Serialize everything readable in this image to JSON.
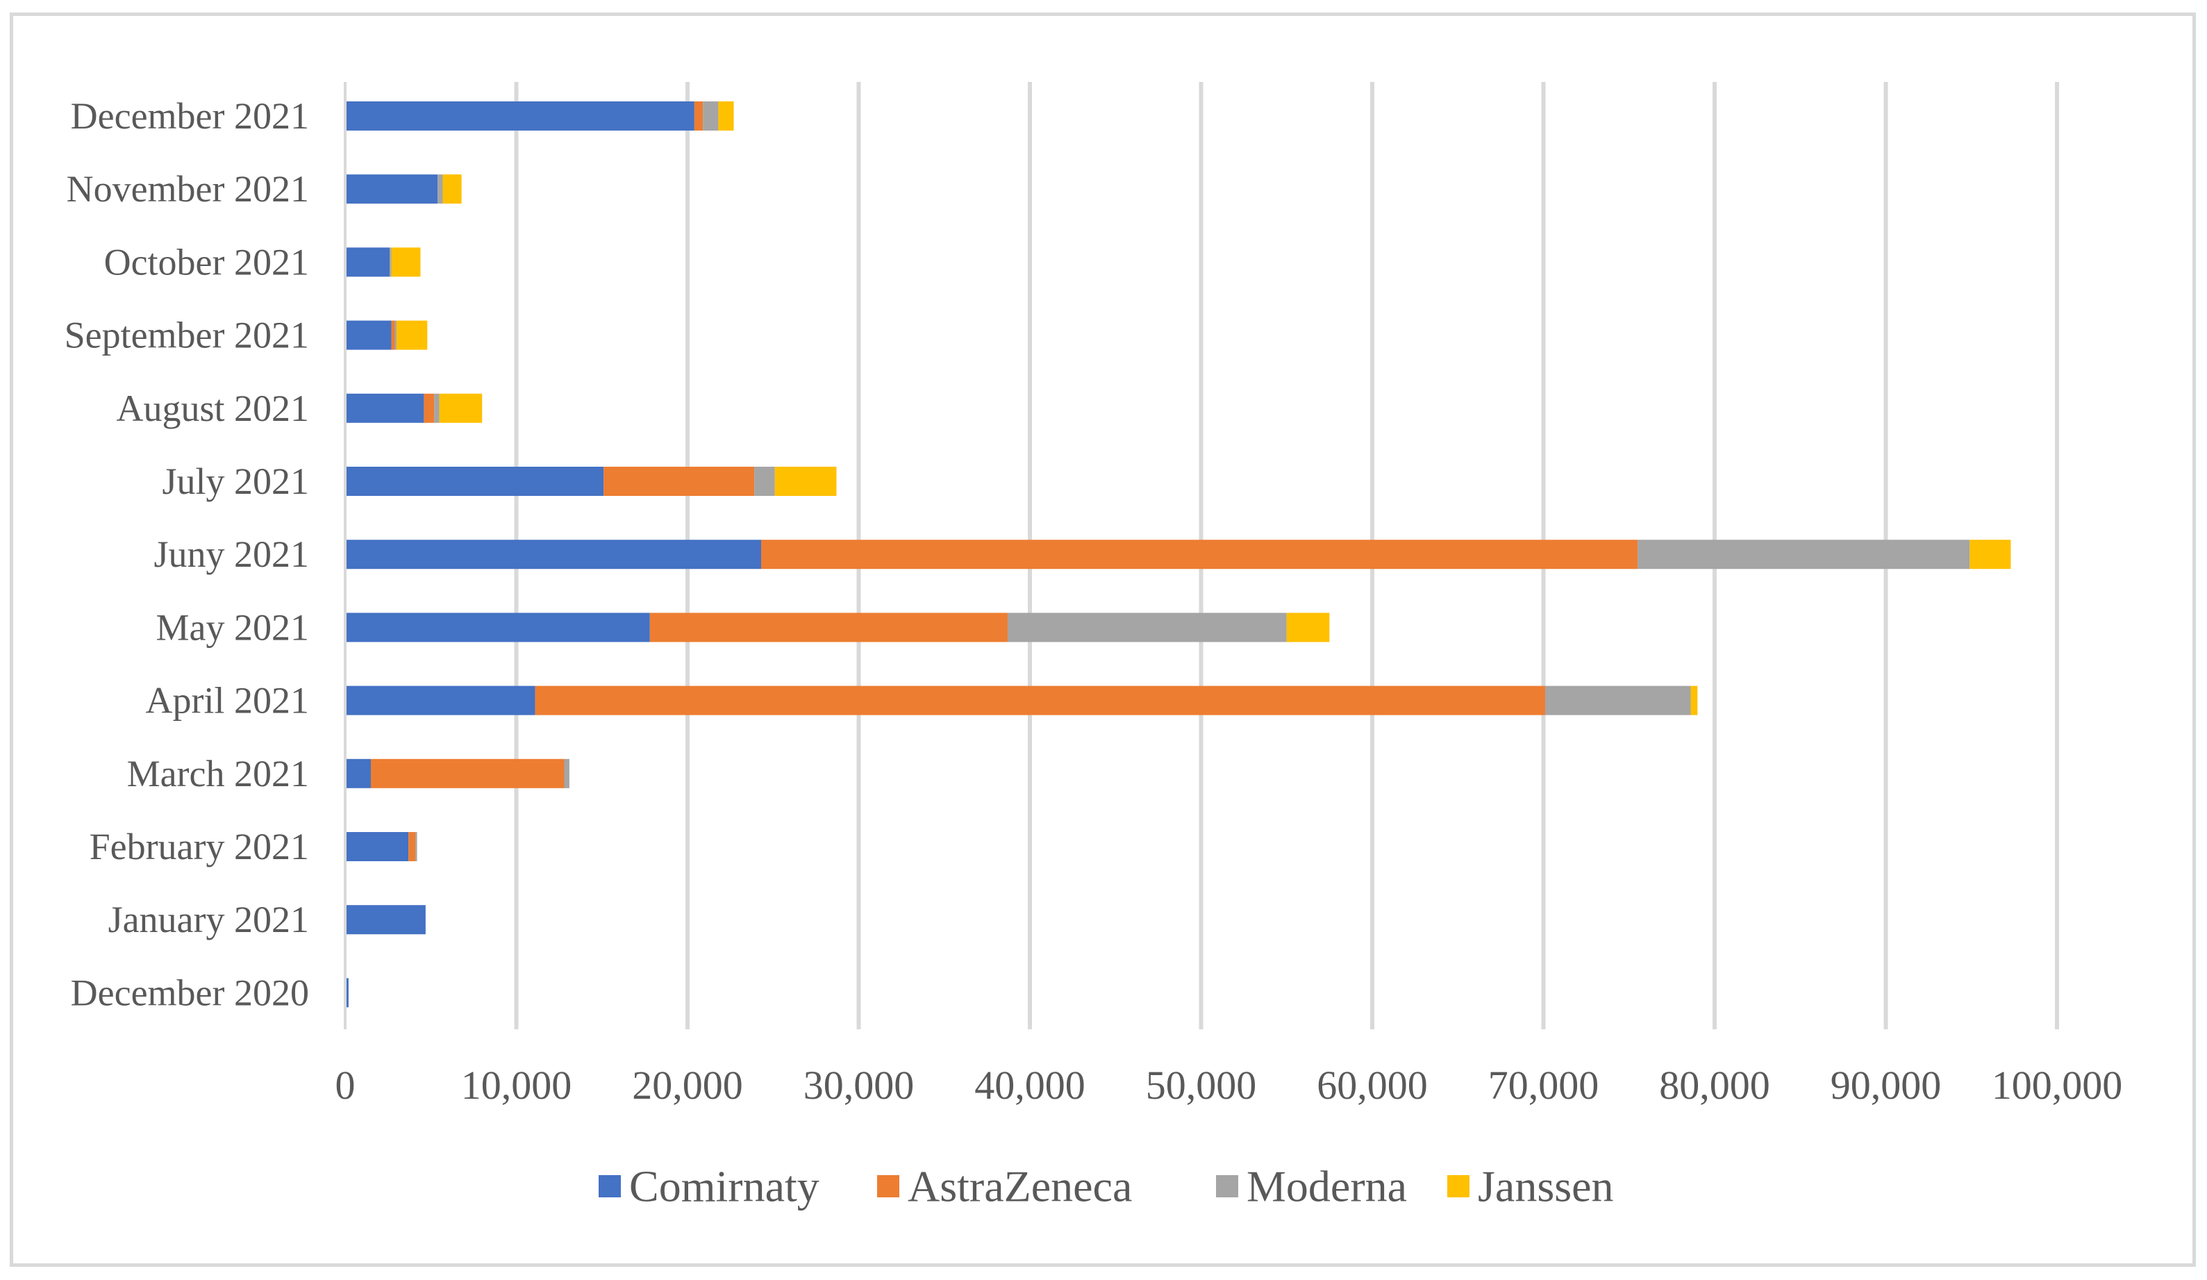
{
  "chart_data": {
    "type": "bar",
    "orientation": "horizontal",
    "stacked": true,
    "title": "",
    "xlabel": "",
    "ylabel": "",
    "xlim": [
      0,
      100000
    ],
    "x_ticks": [
      0,
      10000,
      20000,
      30000,
      40000,
      50000,
      60000,
      70000,
      80000,
      90000,
      100000
    ],
    "x_tick_labels": [
      "0",
      "10,000",
      "20,000",
      "30,000",
      "40,000",
      "50,000",
      "60,000",
      "70,000",
      "80,000",
      "90,000",
      "100,000"
    ],
    "grid": true,
    "legend_position": "bottom",
    "categories": [
      "December 2021",
      "November 2021",
      "October 2021",
      "September 2021",
      "August 2021",
      "July 2021",
      "Juny 2021",
      "May 2021",
      "April 2021",
      "March 2021",
      "February 2021",
      "January 2021",
      "December 2020"
    ],
    "series": [
      {
        "name": "Comirnaty",
        "color": "#4472c4",
        "values": [
          20400,
          5400,
          2600,
          2700,
          4600,
          15100,
          24300,
          17800,
          11100,
          1500,
          3700,
          4700,
          200
        ]
      },
      {
        "name": "AstraZeneca",
        "color": "#ed7d31",
        "values": [
          500,
          0,
          0,
          200,
          600,
          8800,
          51200,
          20900,
          59000,
          11300,
          400,
          0,
          0
        ]
      },
      {
        "name": "Moderna",
        "color": "#a5a5a5",
        "values": [
          900,
          300,
          100,
          100,
          300,
          1200,
          19400,
          16300,
          8500,
          300,
          100,
          0,
          0
        ]
      },
      {
        "name": "Janssen",
        "color": "#ffc000",
        "values": [
          900,
          1100,
          1700,
          1800,
          2500,
          3600,
          2400,
          2500,
          400,
          0,
          0,
          0,
          0
        ]
      }
    ]
  }
}
